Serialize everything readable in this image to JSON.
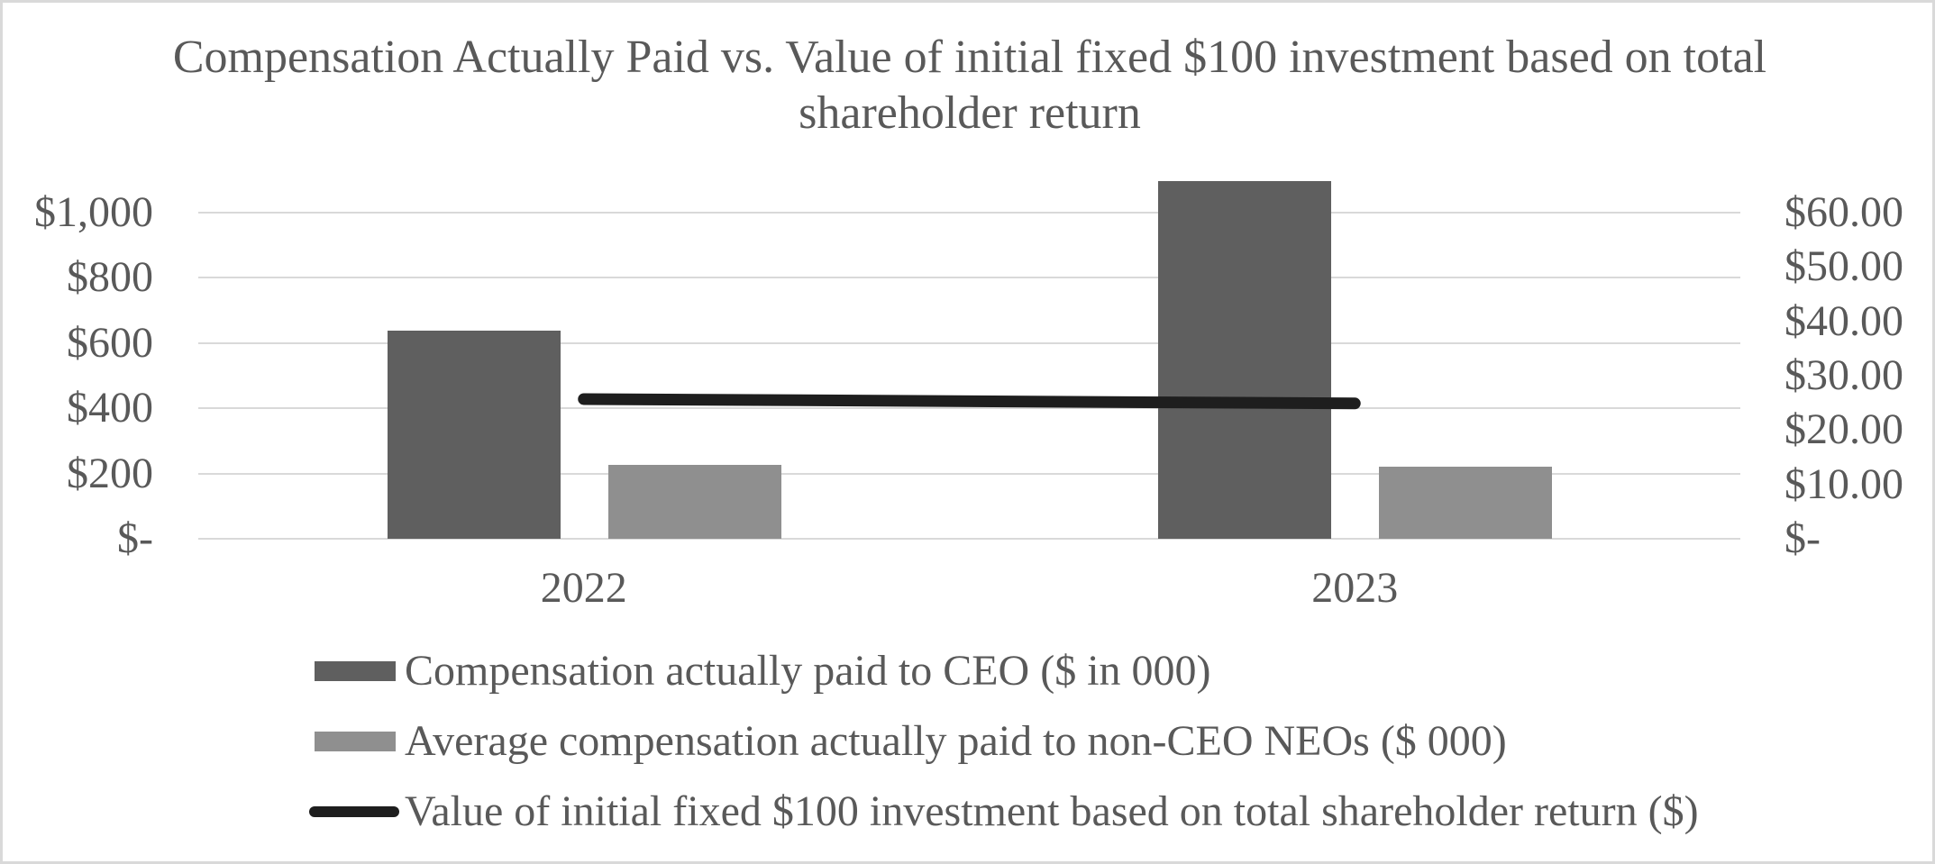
{
  "colors": {
    "text": "#595959",
    "gridline": "#d9d9d9",
    "frame_border": "#d9d9d9",
    "ceo_bar": "#5f5f5f",
    "neo_bar": "#8f8f8f",
    "tsr_line": "#1e1e1e"
  },
  "chart_data": {
    "type": "bar",
    "subtype": "combo-bar-line-dual-axis",
    "title": "Compensation Actually Paid vs. Value of initial fixed $100 investment based on total shareholder return",
    "categories": [
      "2022",
      "2023"
    ],
    "series": [
      {
        "name": "Compensation actually paid to CEO ($ in 000)",
        "kind": "bar",
        "axis": "left",
        "color": "#5f5f5f",
        "values": [
          638,
          1097
        ]
      },
      {
        "name": "Average compensation actually paid to non-CEO NEOs ($ 000)",
        "kind": "bar",
        "axis": "left",
        "color": "#8f8f8f",
        "values": [
          227,
          221
        ]
      },
      {
        "name": "Value of initial fixed $100 investment based on total shareholder return ($)",
        "kind": "line",
        "axis": "right",
        "color": "#1e1e1e",
        "values": [
          25.7,
          24.9
        ]
      }
    ],
    "left_axis": {
      "tick_labels": [
        "$-",
        "$200",
        "$400",
        "$600",
        "$800",
        "$1,000"
      ],
      "tick_values": [
        0,
        200,
        400,
        600,
        800,
        1000
      ],
      "range": [
        0,
        1000
      ]
    },
    "right_axis": {
      "tick_labels": [
        "$-",
        "$10.00",
        "$20.00",
        "$30.00",
        "$40.00",
        "$50.00",
        "$60.00"
      ],
      "tick_values": [
        0,
        10,
        20,
        30,
        40,
        50,
        60
      ],
      "range": [
        0,
        60
      ]
    },
    "grid": true,
    "legend_position": "bottom-left"
  }
}
